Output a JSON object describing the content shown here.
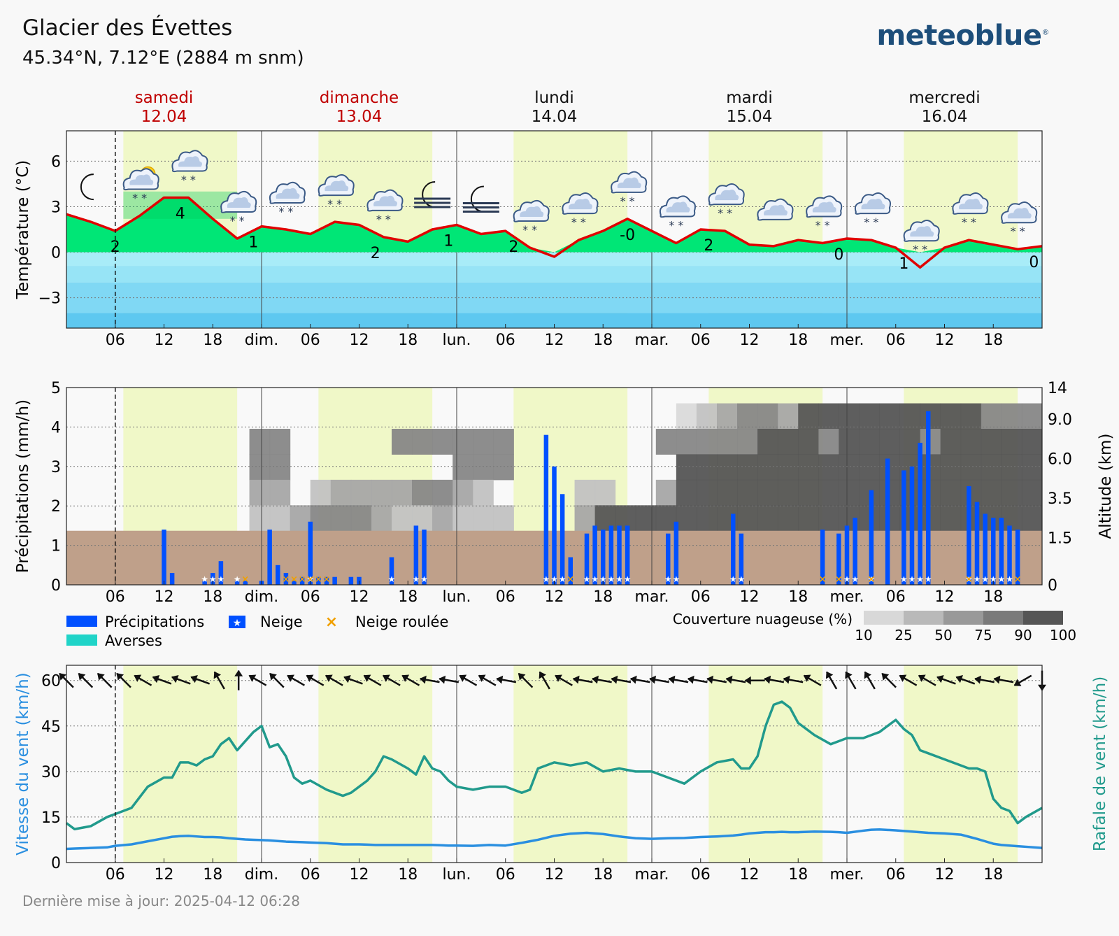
{
  "header": {
    "location": "Glacier des Évettes",
    "coords": "45.34°N, 7.12°E (2884 m snm)",
    "brand": "meteoblue",
    "brand_mark": "®"
  },
  "footer": {
    "updated": "Dernière mise à jour: 2025-04-12 06:28"
  },
  "colors": {
    "day_band": "#f0f8c8",
    "temp_line": "#e00000",
    "temp_pos": "#00e676",
    "precip": "#0050ff",
    "ground": "#bfa08a",
    "wind": "#2a8fe0",
    "gust": "#219a8c",
    "weekend": "#c00000"
  },
  "days": [
    {
      "name": "samedi",
      "date": "12.04",
      "weekend": true
    },
    {
      "name": "dimanche",
      "date": "13.04",
      "weekend": true
    },
    {
      "name": "lundi",
      "date": "14.04",
      "weekend": false
    },
    {
      "name": "mardi",
      "date": "15.04",
      "weekend": false
    },
    {
      "name": "mercredi",
      "date": "16.04",
      "weekend": false
    }
  ],
  "x_ticks": [
    "06",
    "12",
    "18",
    "dim.",
    "06",
    "12",
    "18",
    "lun.",
    "06",
    "12",
    "18",
    "mar.",
    "06",
    "12",
    "18",
    "mer.",
    "06",
    "12",
    "18"
  ],
  "weather_icons": [
    "moon",
    "sun-cloud-rain",
    "cloud-rain-snow",
    "cloud-snow",
    "cloud-snow",
    "cloud-snow",
    "cloud-snow",
    "moon-fog",
    "moon-fog",
    "cloud-snow",
    "cloud-snow",
    "cloud-snow",
    "cloud-snow",
    "cloud-snow",
    "cloud",
    "cloud-snow",
    "cloud-snow",
    "cloud-snow",
    "cloud-snow",
    "cloud-snow"
  ],
  "legend": {
    "precip": "Précipitations",
    "snow": "Neige",
    "graupel": "Neige roulée",
    "showers": "Averses",
    "cloud_title": "Couverture nuageuse (%)",
    "cloud_levels": [
      "10",
      "25",
      "50",
      "75",
      "90",
      "100"
    ]
  },
  "chart_data": [
    {
      "type": "area",
      "title": "",
      "ylabel": "Température (°C)",
      "ylim": [
        -5,
        8
      ],
      "yticks": [
        6,
        3,
        0,
        -3
      ],
      "x_hours": [
        0,
        3,
        6,
        9,
        12,
        15,
        18,
        21,
        24,
        27,
        30,
        33,
        36,
        39,
        42,
        45,
        48,
        51,
        54,
        57,
        60,
        63,
        66,
        69,
        72,
        75,
        78,
        81,
        84,
        87,
        90,
        93,
        96,
        99,
        102,
        105,
        108,
        111,
        114,
        117,
        120
      ],
      "values": [
        2.5,
        2.0,
        1.4,
        2.4,
        3.6,
        3.6,
        2.2,
        0.9,
        1.7,
        1.5,
        1.2,
        2.0,
        1.8,
        1.0,
        0.7,
        1.5,
        1.8,
        1.2,
        1.4,
        0.3,
        -0.3,
        0.8,
        1.4,
        2.2,
        1.4,
        0.6,
        1.5,
        1.4,
        0.5,
        0.4,
        0.8,
        0.6,
        0.9,
        0.8,
        0.3,
        -1.0,
        0.3,
        0.8,
        0.5,
        0.2,
        0.4
      ],
      "annotations": [
        {
          "hour": 6,
          "text": "2"
        },
        {
          "hour": 14,
          "text": "4"
        },
        {
          "hour": 23,
          "text": "1"
        },
        {
          "hour": 38,
          "text": "2"
        },
        {
          "hour": 47,
          "text": "1"
        },
        {
          "hour": 55,
          "text": "2"
        },
        {
          "hour": 69,
          "text": "-0"
        },
        {
          "hour": 79,
          "text": "2"
        },
        {
          "hour": 95,
          "text": "0"
        },
        {
          "hour": 103,
          "text": "1"
        },
        {
          "hour": 119,
          "text": "0"
        }
      ]
    },
    {
      "type": "bar",
      "title": "",
      "ylabel": "Précipitations (mm/h)",
      "ylabel_right": "Altitude (km)",
      "ylim": [
        0,
        5
      ],
      "yticks": [
        5,
        4,
        3,
        2,
        1,
        0
      ],
      "right_ticks": [
        "14",
        "9.0",
        "6.0",
        "3.5",
        "1.5",
        "0"
      ],
      "ground_level_mm": 1.37,
      "bars": [
        {
          "hour": 12,
          "value": 1.4
        },
        {
          "hour": 13,
          "value": 0.3
        },
        {
          "hour": 17,
          "value": 0.1
        },
        {
          "hour": 18,
          "value": 0.3
        },
        {
          "hour": 19,
          "value": 0.6
        },
        {
          "hour": 21,
          "value": 0.1
        },
        {
          "hour": 22,
          "value": 0.1
        },
        {
          "hour": 24,
          "value": 0.1
        },
        {
          "hour": 25,
          "value": 1.4
        },
        {
          "hour": 26,
          "value": 0.5
        },
        {
          "hour": 27,
          "value": 0.3
        },
        {
          "hour": 28,
          "value": 0.1
        },
        {
          "hour": 29,
          "value": 0.2
        },
        {
          "hour": 30,
          "value": 1.6
        },
        {
          "hour": 31,
          "value": 0.2
        },
        {
          "hour": 32,
          "value": 0.2
        },
        {
          "hour": 33,
          "value": 0.2
        },
        {
          "hour": 35,
          "value": 0.2
        },
        {
          "hour": 36,
          "value": 0.2
        },
        {
          "hour": 40,
          "value": 0.7
        },
        {
          "hour": 43,
          "value": 1.5
        },
        {
          "hour": 44,
          "value": 1.4
        },
        {
          "hour": 59,
          "value": 3.8
        },
        {
          "hour": 60,
          "value": 3.0
        },
        {
          "hour": 61,
          "value": 2.3
        },
        {
          "hour": 62,
          "value": 0.7
        },
        {
          "hour": 64,
          "value": 1.3
        },
        {
          "hour": 65,
          "value": 1.5
        },
        {
          "hour": 66,
          "value": 1.4
        },
        {
          "hour": 67,
          "value": 1.5
        },
        {
          "hour": 68,
          "value": 1.5
        },
        {
          "hour": 69,
          "value": 1.5
        },
        {
          "hour": 74,
          "value": 1.3
        },
        {
          "hour": 75,
          "value": 1.6
        },
        {
          "hour": 82,
          "value": 1.8
        },
        {
          "hour": 83,
          "value": 1.3
        },
        {
          "hour": 93,
          "value": 1.4
        },
        {
          "hour": 95,
          "value": 1.3
        },
        {
          "hour": 96,
          "value": 1.5
        },
        {
          "hour": 97,
          "value": 1.7
        },
        {
          "hour": 99,
          "value": 2.4
        },
        {
          "hour": 101,
          "value": 3.2
        },
        {
          "hour": 103,
          "value": 2.9
        },
        {
          "hour": 104,
          "value": 3.0
        },
        {
          "hour": 105,
          "value": 3.6
        },
        {
          "hour": 106,
          "value": 4.4
        },
        {
          "hour": 111,
          "value": 2.5
        },
        {
          "hour": 112,
          "value": 2.1
        },
        {
          "hour": 113,
          "value": 1.8
        },
        {
          "hour": 114,
          "value": 1.7
        },
        {
          "hour": 115,
          "value": 1.7
        },
        {
          "hour": 116,
          "value": 1.5
        },
        {
          "hour": 117,
          "value": 1.4
        }
      ],
      "snow_hours": [
        17,
        18,
        19,
        21,
        30,
        40,
        43,
        44,
        59,
        60,
        61,
        64,
        65,
        66,
        67,
        68,
        69,
        74,
        75,
        82,
        83,
        96,
        97,
        99,
        103,
        104,
        105,
        106,
        111,
        112,
        113,
        114,
        115,
        116
      ],
      "graupel_hours": [
        22,
        27,
        28,
        29,
        30,
        31,
        32,
        62,
        93,
        95,
        99,
        111,
        117
      ],
      "cloud_cover_percent": [
        [
          0,
          0,
          0,
          0,
          0,
          0,
          0,
          0,
          0,
          0,
          0,
          0,
          0,
          0,
          0,
          0,
          0,
          0,
          0,
          0,
          0,
          0,
          0,
          0,
          0,
          0,
          0,
          0,
          0,
          0,
          10,
          25,
          50,
          75,
          75,
          50,
          90,
          90,
          90,
          90,
          90,
          90,
          90,
          90,
          90,
          75,
          75,
          75
        ],
        [
          0,
          0,
          0,
          0,
          0,
          0,
          0,
          0,
          0,
          75,
          75,
          0,
          0,
          0,
          0,
          0,
          75,
          75,
          75,
          75,
          75,
          75,
          0,
          0,
          0,
          0,
          0,
          0,
          0,
          75,
          75,
          75,
          75,
          75,
          90,
          90,
          90,
          75,
          90,
          90,
          90,
          90,
          75,
          90,
          90,
          90,
          90,
          90
        ],
        [
          0,
          0,
          0,
          0,
          0,
          0,
          0,
          0,
          0,
          75,
          75,
          0,
          0,
          0,
          0,
          0,
          0,
          0,
          0,
          75,
          75,
          75,
          0,
          0,
          0,
          0,
          0,
          0,
          0,
          0,
          90,
          90,
          90,
          90,
          90,
          90,
          90,
          90,
          90,
          90,
          90,
          90,
          90,
          90,
          90,
          90,
          90,
          90
        ],
        [
          0,
          0,
          0,
          0,
          0,
          0,
          0,
          0,
          0,
          50,
          50,
          0,
          25,
          50,
          50,
          50,
          50,
          75,
          75,
          50,
          25,
          0,
          0,
          0,
          0,
          25,
          25,
          0,
          0,
          50,
          90,
          90,
          90,
          90,
          90,
          90,
          90,
          90,
          90,
          90,
          90,
          90,
          90,
          90,
          90,
          90,
          90,
          90
        ],
        [
          0,
          0,
          0,
          0,
          0,
          0,
          0,
          0,
          0,
          25,
          25,
          50,
          75,
          75,
          75,
          50,
          25,
          25,
          50,
          25,
          25,
          25,
          0,
          0,
          0,
          50,
          90,
          90,
          90,
          90,
          90,
          90,
          90,
          90,
          90,
          90,
          90,
          90,
          90,
          90,
          90,
          90,
          90,
          90,
          90,
          90,
          90,
          90
        ]
      ]
    },
    {
      "type": "line",
      "title": "",
      "ylabel": "Vitesse du vent (km/h)",
      "ylabel_right": "Rafale de vent (km/h)",
      "ylim": [
        0,
        65
      ],
      "yticks": [
        60,
        45,
        30,
        15,
        0
      ],
      "x_hours": [
        0,
        1,
        3,
        5,
        6,
        8,
        10,
        12,
        13,
        14,
        15,
        16,
        17,
        18,
        19,
        20,
        21,
        22,
        23,
        24,
        25,
        26,
        27,
        28,
        29,
        30,
        32,
        33,
        34,
        35,
        36,
        37,
        38,
        39,
        40,
        42,
        43,
        44,
        45,
        46,
        47,
        48,
        50,
        52,
        54,
        56,
        57,
        58,
        60,
        62,
        64,
        66,
        68,
        70,
        72,
        74,
        76,
        78,
        80,
        82,
        83,
        84,
        85,
        86,
        87,
        88,
        89,
        90,
        92,
        94,
        95,
        96,
        98,
        99,
        100,
        102,
        103,
        104,
        105,
        106,
        108,
        110,
        111,
        112,
        113,
        114,
        115,
        116,
        117,
        118,
        120
      ],
      "series": [
        {
          "name": "Rafale de vent",
          "values": [
            13,
            11,
            12,
            15,
            16,
            18,
            25,
            28,
            28,
            33,
            33,
            32,
            34,
            35,
            39,
            41,
            37,
            40,
            43,
            45,
            38,
            39,
            35,
            28,
            26,
            27,
            24,
            23,
            22,
            23,
            25,
            27,
            30,
            35,
            34,
            31,
            29,
            35,
            31,
            30,
            27,
            25,
            24,
            25,
            25,
            23,
            24,
            31,
            33,
            32,
            33,
            30,
            31,
            30,
            30,
            28,
            26,
            30,
            33,
            34,
            31,
            31,
            35,
            45,
            52,
            53,
            51,
            46,
            42,
            39,
            40,
            41,
            41,
            42,
            43,
            47,
            44,
            42,
            37,
            36,
            34,
            32,
            31,
            31,
            30,
            21,
            18,
            17,
            13,
            15,
            18
          ],
          "source_note": "approx"
        },
        {
          "name": "Vitesse du vent",
          "values": [
            4.5,
            4.6,
            4.8,
            5,
            5.5,
            6,
            7,
            8,
            8.5,
            8.7,
            8.8,
            8.6,
            8.4,
            8.4,
            8.3,
            8,
            7.8,
            7.6,
            7.5,
            7.4,
            7.3,
            7.1,
            6.9,
            6.8,
            6.7,
            6.6,
            6.4,
            6.2,
            6,
            6,
            6,
            5.9,
            5.8,
            5.8,
            5.8,
            5.8,
            5.8,
            5.8,
            5.8,
            5.7,
            5.6,
            5.6,
            5.5,
            5.8,
            5.6,
            6.5,
            7,
            7.5,
            8.8,
            9.5,
            9.8,
            9.4,
            8.6,
            8,
            7.8,
            8,
            8.1,
            8.4,
            8.6,
            8.9,
            9.2,
            9.6,
            9.8,
            10,
            10,
            10.1,
            10,
            10,
            10.2,
            10.1,
            10,
            9.8,
            10.5,
            10.8,
            10.9,
            10.6,
            10.4,
            10.2,
            10,
            9.8,
            9.6,
            9.2,
            8.5,
            7.8,
            7,
            6.2,
            5.8,
            5.6,
            5.4,
            5.2,
            4.8
          ]
        }
      ],
      "wind_dir_deg": [
        135,
        135,
        135,
        135,
        120,
        110,
        110,
        110,
        150,
        180,
        120,
        135,
        120,
        120,
        120,
        110,
        120,
        120,
        120,
        100,
        100,
        120,
        120,
        100,
        135,
        150,
        120,
        100,
        100,
        100,
        100,
        100,
        100,
        100,
        100,
        100,
        90,
        100,
        100,
        120,
        150,
        150,
        150,
        135,
        120,
        120,
        110,
        110,
        100,
        100,
        60,
        0
      ]
    }
  ]
}
